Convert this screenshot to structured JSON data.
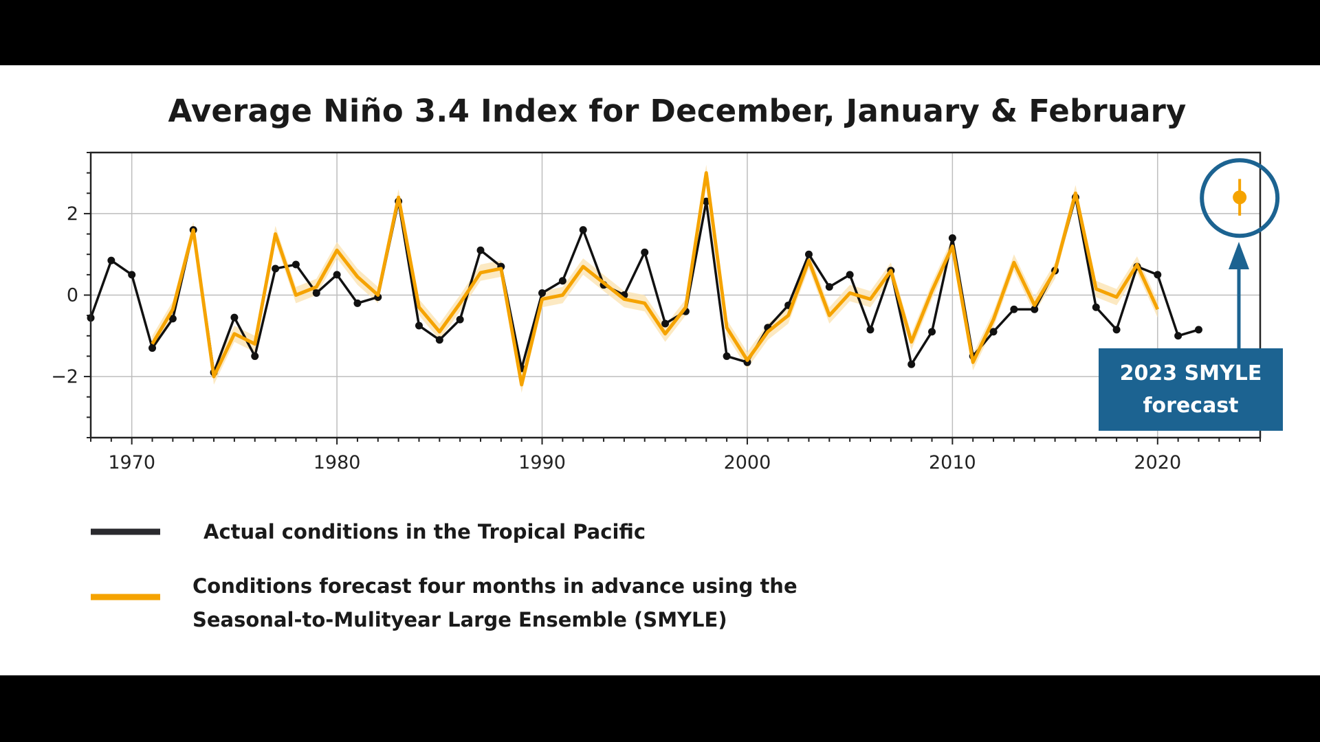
{
  "chart_data": {
    "type": "line",
    "title": "Average Niño 3.4 Index for December, January & February",
    "xlabel": "",
    "ylabel": "",
    "xlim": [
      1968,
      2025
    ],
    "ylim": [
      -3.5,
      3.5
    ],
    "x_ticks": [
      "1970",
      "1980",
      "1990",
      "2000",
      "2010",
      "2020"
    ],
    "y_ticks": [
      "2",
      "0",
      "−2"
    ],
    "grid": true,
    "legend_placement": "bottom-left",
    "colors": {
      "actual": "#111111",
      "forecast": "#f5a300",
      "forecast_band": "#fbe3b3",
      "annotation": "#1c6391"
    },
    "series": [
      {
        "name": "Actual conditions in the Tropical Pacific",
        "x": [
          1968,
          1969,
          1970,
          1971,
          1972,
          1973,
          1974,
          1975,
          1976,
          1977,
          1978,
          1979,
          1980,
          1981,
          1982,
          1983,
          1984,
          1985,
          1986,
          1987,
          1988,
          1989,
          1990,
          1991,
          1992,
          1993,
          1994,
          1995,
          1996,
          1997,
          1998,
          1999,
          2000,
          2001,
          2002,
          2003,
          2004,
          2005,
          2006,
          2007,
          2008,
          2009,
          2010,
          2011,
          2012,
          2013,
          2014,
          2015,
          2016,
          2017,
          2018,
          2019,
          2020,
          2021,
          2022
        ],
        "values": [
          -0.56,
          0.85,
          0.5,
          -1.3,
          -0.58,
          1.6,
          -1.9,
          -0.55,
          -1.5,
          0.65,
          0.75,
          0.05,
          0.5,
          -0.2,
          -0.05,
          2.3,
          -0.75,
          -1.1,
          -0.6,
          1.1,
          0.7,
          -1.8,
          0.05,
          0.35,
          1.6,
          0.25,
          0.0,
          1.05,
          -0.7,
          -0.4,
          2.3,
          -1.5,
          -1.65,
          -0.8,
          -0.25,
          1.0,
          0.2,
          0.5,
          -0.85,
          0.6,
          -1.7,
          -0.9,
          1.4,
          -1.5,
          -0.9,
          -0.35,
          -0.35,
          0.6,
          2.4,
          -0.3,
          -0.85,
          0.7,
          0.5,
          -1.0,
          -0.85
        ]
      },
      {
        "name": "Conditions forecast four months in advance using the Seasonal-to-Mulityear Large Ensemble (SMYLE)",
        "x": [
          1971,
          1972,
          1973,
          1974,
          1975,
          1976,
          1977,
          1978,
          1979,
          1980,
          1981,
          1982,
          1983,
          1984,
          1985,
          1986,
          1987,
          1988,
          1989,
          1990,
          1991,
          1992,
          1993,
          1994,
          1995,
          1996,
          1997,
          1998,
          1999,
          2000,
          2001,
          2002,
          2003,
          2004,
          2005,
          2006,
          2007,
          2008,
          2009,
          2010,
          2011,
          2012,
          2013,
          2014,
          2015,
          2016,
          2017,
          2018,
          2019,
          2020
        ],
        "values": [
          -1.2,
          -0.35,
          1.6,
          -2.0,
          -0.95,
          -1.2,
          1.5,
          0.0,
          0.2,
          1.1,
          0.45,
          0.0,
          2.4,
          -0.3,
          -0.9,
          -0.2,
          0.55,
          0.65,
          -2.2,
          -0.1,
          0.0,
          0.7,
          0.3,
          -0.1,
          -0.2,
          -0.95,
          -0.3,
          3.0,
          -0.8,
          -1.6,
          -0.9,
          -0.5,
          0.85,
          -0.5,
          0.05,
          -0.1,
          0.6,
          -1.15,
          0.1,
          1.2,
          -1.65,
          -0.6,
          0.8,
          -0.25,
          0.6,
          2.5,
          0.15,
          -0.05,
          0.75,
          -0.35
        ],
        "band_halfwidth": 0.2
      }
    ],
    "forecast_point": {
      "x": 2024,
      "value": 2.4,
      "range": [
        1.95,
        2.85
      ]
    },
    "annotation": {
      "line1": "2023 SMYLE",
      "line2": "forecast"
    }
  },
  "legend": {
    "actual": "Actual conditions in the Tropical Pacific",
    "forecast_line1": "Conditions forecast four months in advance using the",
    "forecast_line2": "Seasonal-to-Mulityear Large Ensemble (SMYLE)"
  }
}
